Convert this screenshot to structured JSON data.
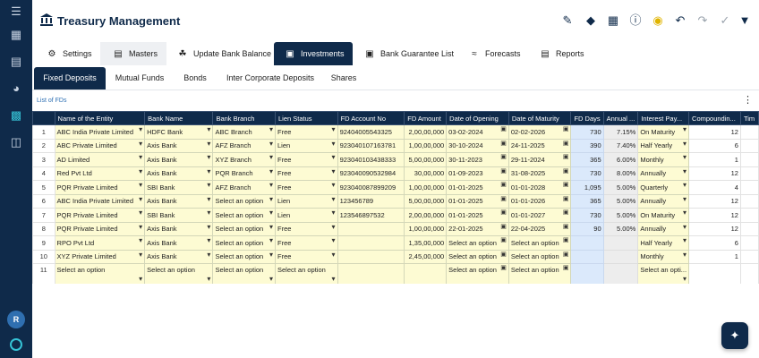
{
  "app": {
    "title": "Treasury Management",
    "avatar_initial": "R"
  },
  "modules": [
    {
      "label": "Settings",
      "icon": "gear-icon"
    },
    {
      "label": "Masters",
      "icon": "document-icon"
    },
    {
      "label": "Update Bank Balance",
      "icon": "bank-icon"
    },
    {
      "label": "Investments",
      "icon": "investment-icon"
    },
    {
      "label": "Bank Guarantee List",
      "icon": "guarantee-icon"
    },
    {
      "label": "Forecasts",
      "icon": "chart-icon"
    },
    {
      "label": "Reports",
      "icon": "report-icon"
    }
  ],
  "subtabs": [
    "Fixed Deposits",
    "Mutual Funds",
    "Bonds",
    "Inter Corporate Deposits",
    "Shares"
  ],
  "list_title": "List of FDs",
  "columns": [
    "",
    "Name of the Entity",
    "Bank Name",
    "Bank Branch",
    "Lien Status",
    "FD Account No",
    "FD Amount",
    "Date of Opening",
    "Date of Maturity",
    "FD Days",
    "Annual ...",
    "Interest Pay...",
    "Compoundin...",
    "Tim"
  ],
  "rows": [
    {
      "n": "1",
      "entity": "ABC India Private Limited",
      "bank": "HDFC Bank",
      "branch": "ABC Branch",
      "lien": "Free",
      "acct": "92404005543325",
      "amount": "2,00,00,000",
      "open": "03-02-2024",
      "maturity": "02-02-2026",
      "days": "730",
      "annual": "7.15%",
      "interest": "On Maturity",
      "comp": "12"
    },
    {
      "n": "2",
      "entity": "ABC Private Limited",
      "bank": "Axis Bank",
      "branch": "AFZ Branch",
      "lien": "Lien",
      "acct": "923040107163781",
      "amount": "1,00,00,000",
      "open": "30-10-2024",
      "maturity": "24-11-2025",
      "days": "390",
      "annual": "7.40%",
      "interest": "Half Yearly",
      "comp": "6"
    },
    {
      "n": "3",
      "entity": "AD Limited",
      "bank": "Axis Bank",
      "branch": "XYZ Branch",
      "lien": "Free",
      "acct": "923040103438333",
      "amount": "5,00,00,000",
      "open": "30-11-2023",
      "maturity": "29-11-2024",
      "days": "365",
      "annual": "6.00%",
      "interest": "Monthly",
      "comp": "1"
    },
    {
      "n": "4",
      "entity": "Red Pvt Ltd",
      "bank": "Axis Bank",
      "branch": "PQR Branch",
      "lien": "Free",
      "acct": "923040090532984",
      "amount": "30,00,000",
      "open": "01-09-2023",
      "maturity": "31-08-2025",
      "days": "730",
      "annual": "8.00%",
      "interest": "Annually",
      "comp": "12"
    },
    {
      "n": "5",
      "entity": "PQR Private Limited",
      "bank": "SBI Bank",
      "branch": "AFZ Branch",
      "lien": "Free",
      "acct": "923040087899209",
      "amount": "1,00,00,000",
      "open": "01-01-2025",
      "maturity": "01-01-2028",
      "days": "1,095",
      "annual": "5.00%",
      "interest": "Quarterly",
      "comp": "4"
    },
    {
      "n": "6",
      "entity": "ABC India Private Limited",
      "bank": "Axis Bank",
      "branch": "Select an option",
      "lien": "Lien",
      "acct": "123456789",
      "amount": "5,00,00,000",
      "open": "01-01-2025",
      "maturity": "01-01-2026",
      "days": "365",
      "annual": "5.00%",
      "interest": "Annually",
      "comp": "12"
    },
    {
      "n": "7",
      "entity": "PQR Private Limited",
      "bank": "SBI Bank",
      "branch": "Select an option",
      "lien": "Lien",
      "acct": "123546897532",
      "amount": "2,00,00,000",
      "open": "01-01-2025",
      "maturity": "01-01-2027",
      "days": "730",
      "annual": "5.00%",
      "interest": "On Maturity",
      "comp": "12"
    },
    {
      "n": "8",
      "entity": "PQR Private Limited",
      "bank": "Axis Bank",
      "branch": "Select an option",
      "lien": "Free",
      "acct": "",
      "amount": "1,00,00,000",
      "open": "22-01-2025",
      "maturity": "22-04-2025",
      "days": "90",
      "annual": "5.00%",
      "interest": "Annually",
      "comp": "12"
    },
    {
      "n": "9",
      "entity": "RPO Pvt Ltd",
      "bank": "Axis Bank",
      "branch": "Select an option",
      "lien": "Free",
      "acct": "",
      "amount": "1,35,00,000",
      "open": "Select an option",
      "maturity": "Select an option",
      "days": "",
      "annual": "",
      "interest": "Half Yearly",
      "comp": "6"
    },
    {
      "n": "10",
      "entity": "XYZ Private Limited",
      "bank": "Axis Bank",
      "branch": "Select an option",
      "lien": "Free",
      "acct": "",
      "amount": "2,45,00,000",
      "open": "Select an option",
      "maturity": "Select an option",
      "days": "",
      "annual": "",
      "interest": "Monthly",
      "comp": "1"
    },
    {
      "n": "11",
      "entity": "Select an option",
      "bank": "Select an option",
      "branch": "Select an option",
      "lien": "Select an option",
      "acct": "",
      "amount": "",
      "open": "Select an option",
      "maturity": "Select an option",
      "days": "",
      "annual": "",
      "interest": "Select an opti...",
      "comp": ""
    }
  ]
}
